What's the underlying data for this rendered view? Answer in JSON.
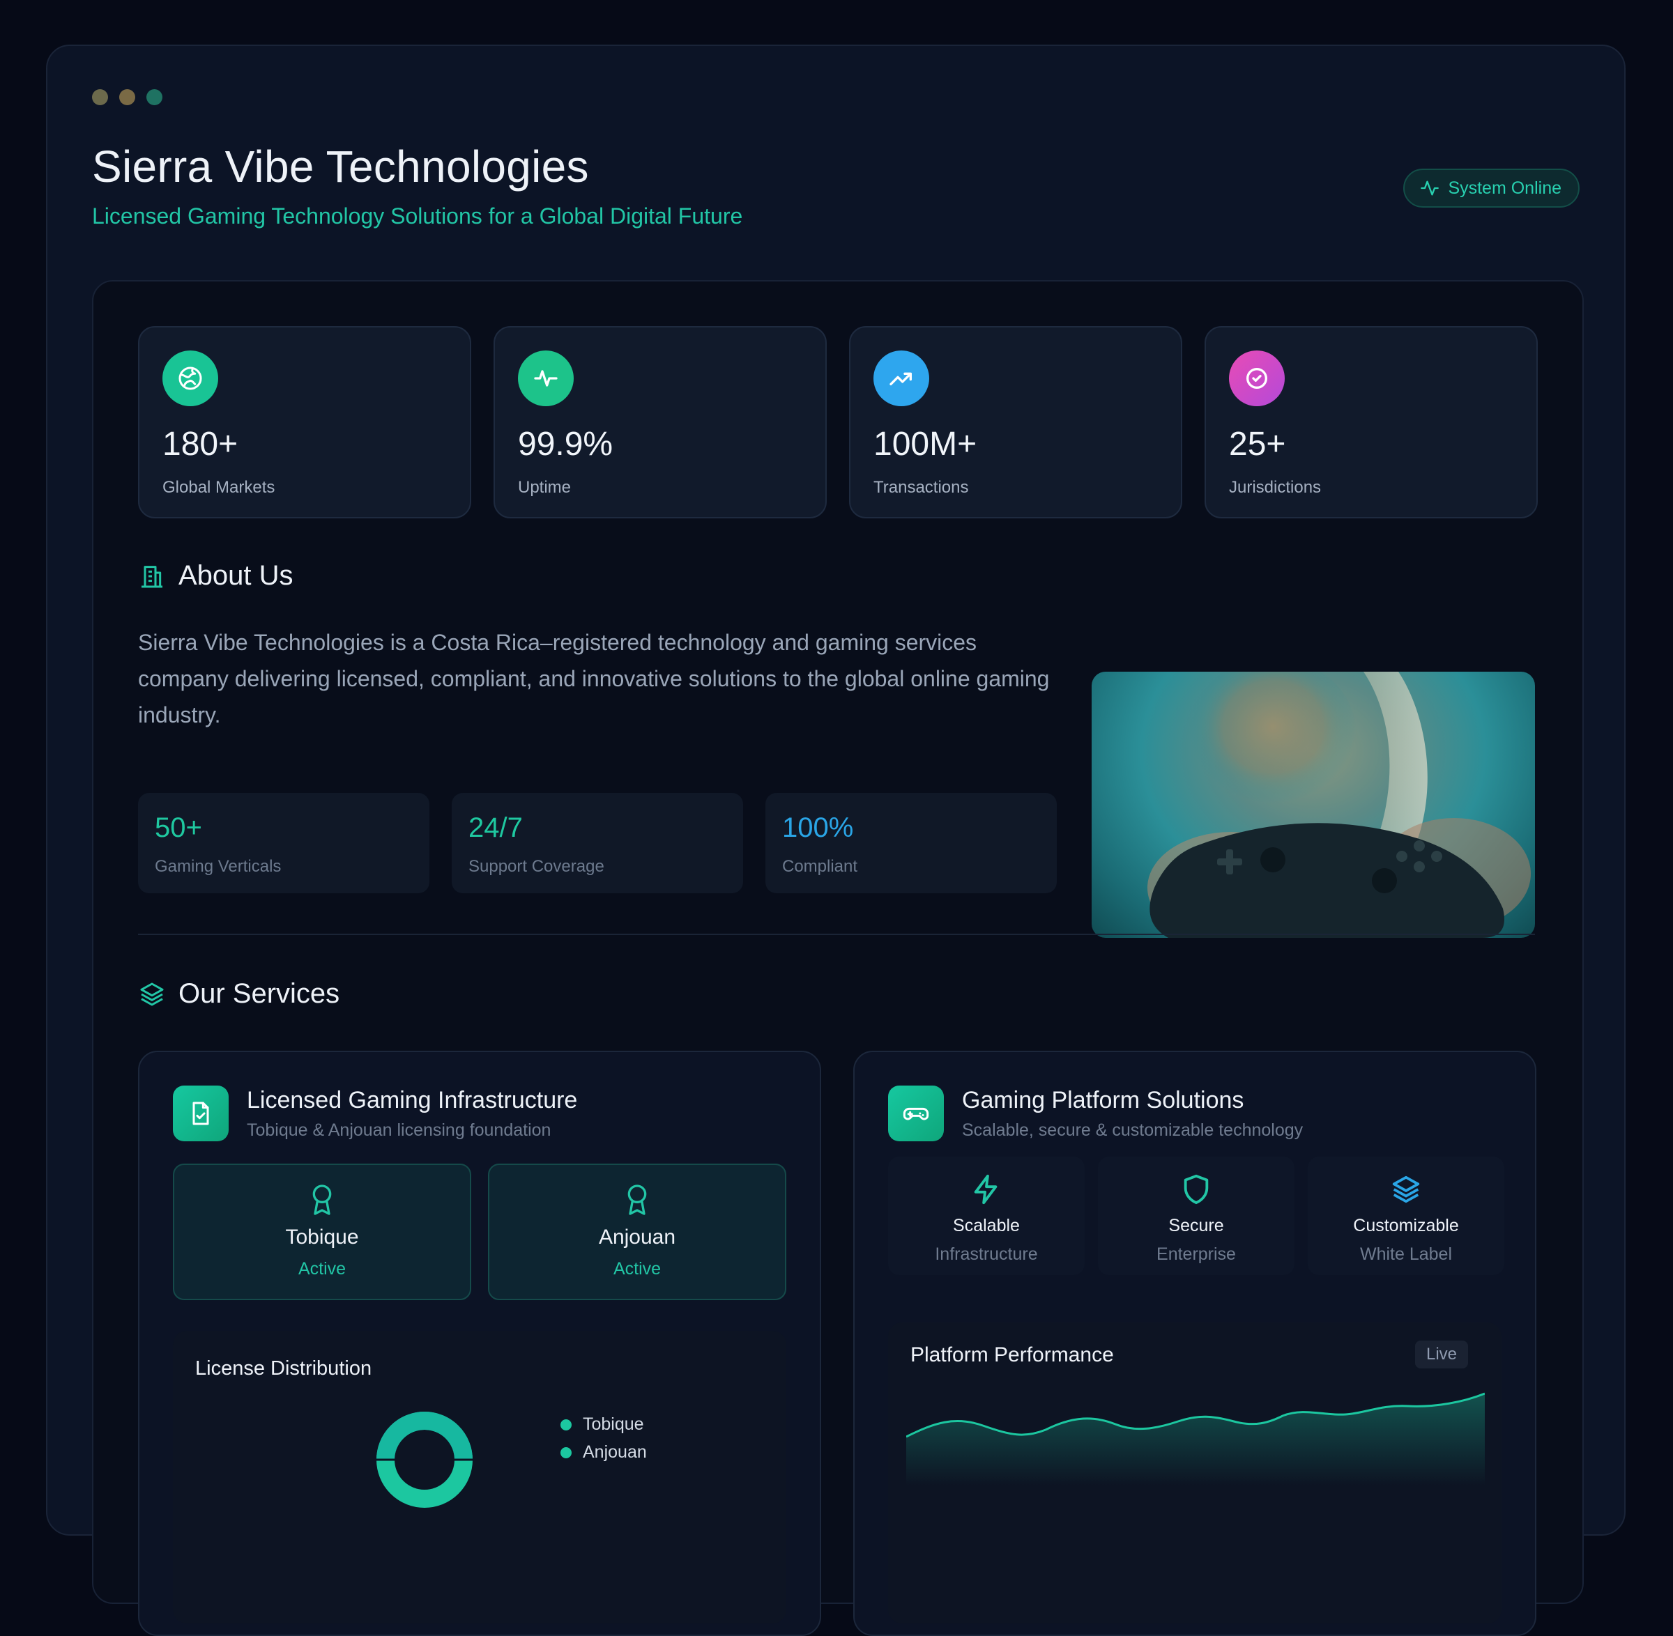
{
  "window": {
    "title": "Sierra Vibe Technologies",
    "subtitle": "Licensed Gaming Technology Solutions for a Global Digital Future",
    "status": "System Online"
  },
  "stats": [
    {
      "value": "180+",
      "label": "Global Markets",
      "icon": "globe-icon",
      "color": "#19c495"
    },
    {
      "value": "99.9%",
      "label": "Uptime",
      "icon": "activity-icon",
      "color": "#1dc38a"
    },
    {
      "value": "100M+",
      "label": "Transactions",
      "icon": "trending-up-icon",
      "color": "#2ea6ee"
    },
    {
      "value": "25+",
      "label": "Jurisdictions",
      "icon": "check-circle-icon",
      "color": "#d548c9"
    }
  ],
  "about": {
    "heading": "About Us",
    "text": "Sierra Vibe Technologies is a Costa Rica–registered technology and gaming services company delivering licensed, compliant, and innovative solutions to the global online gaming industry.",
    "metrics": [
      {
        "value": "50+",
        "label": "Gaming Verticals",
        "color": "#1fc8a0"
      },
      {
        "value": "24/7",
        "label": "Support Coverage",
        "color": "#1fc8a0"
      },
      {
        "value": "100%",
        "label": "Compliant",
        "color": "#2aa5e6"
      }
    ]
  },
  "services": {
    "heading": "Our Services",
    "infrastructure": {
      "title": "Licensed Gaming Infrastructure",
      "subtitle": "Tobique & Anjouan licensing foundation",
      "licenses": [
        {
          "name": "Tobique",
          "status": "Active"
        },
        {
          "name": "Anjouan",
          "status": "Active"
        }
      ],
      "distribution_title": "License Distribution",
      "legend": [
        "Tobique",
        "Anjouan"
      ]
    },
    "platform": {
      "title": "Gaming Platform Solutions",
      "subtitle": "Scalable, secure & customizable technology",
      "features": [
        {
          "name": "Scalable",
          "sub": "Infrastructure",
          "icon": "zap-icon"
        },
        {
          "name": "Secure",
          "sub": "Enterprise",
          "icon": "shield-icon"
        },
        {
          "name": "Customizable",
          "sub": "White Label",
          "icon": "layers-icon"
        }
      ],
      "performance_title": "Platform Performance",
      "performance_badge": "Live"
    }
  },
  "colors": {
    "accent": "#22c6a6",
    "background": "#060a17",
    "panel": "#080d1a"
  }
}
